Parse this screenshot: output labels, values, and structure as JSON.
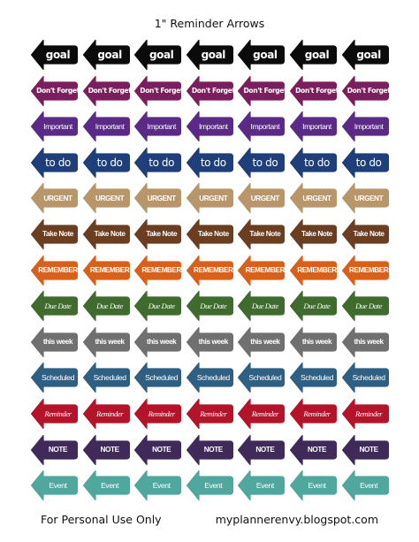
{
  "page": {
    "title": "1\" Reminder Arrows",
    "footer_left": "For Personal Use Only",
    "footer_right": "myplannerenvy.blogspot.com"
  },
  "arrows_per_row": 7,
  "rows": [
    {
      "label": "goal",
      "color": "#0b0b0b",
      "style": "bubble"
    },
    {
      "label": "Don't Forget",
      "color": "#7b1e5e",
      "style": "brush"
    },
    {
      "label": "Important",
      "color": "#5b2a86",
      "style": "plain"
    },
    {
      "label": "to do",
      "color": "#1f3f7a",
      "style": "round"
    },
    {
      "label": "URGENT",
      "color": "#b9966a",
      "style": "bold"
    },
    {
      "label": "Take Note",
      "color": "#6b3e22",
      "style": "bold"
    },
    {
      "label": "REMEMBER",
      "color": "#d9601a",
      "style": "bold"
    },
    {
      "label": "Due Date",
      "color": "#3f6b2e",
      "style": "script"
    },
    {
      "label": "this week",
      "color": "#707070",
      "style": "bold"
    },
    {
      "label": "Scheduled",
      "color": "#2f5f82",
      "style": "plain"
    },
    {
      "label": "Reminder",
      "color": "#b3142a",
      "style": "script"
    },
    {
      "label": "NOTE",
      "color": "#3f2a5a",
      "style": "bold"
    },
    {
      "label": "Event",
      "color": "#4fa79e",
      "style": "plain"
    }
  ]
}
